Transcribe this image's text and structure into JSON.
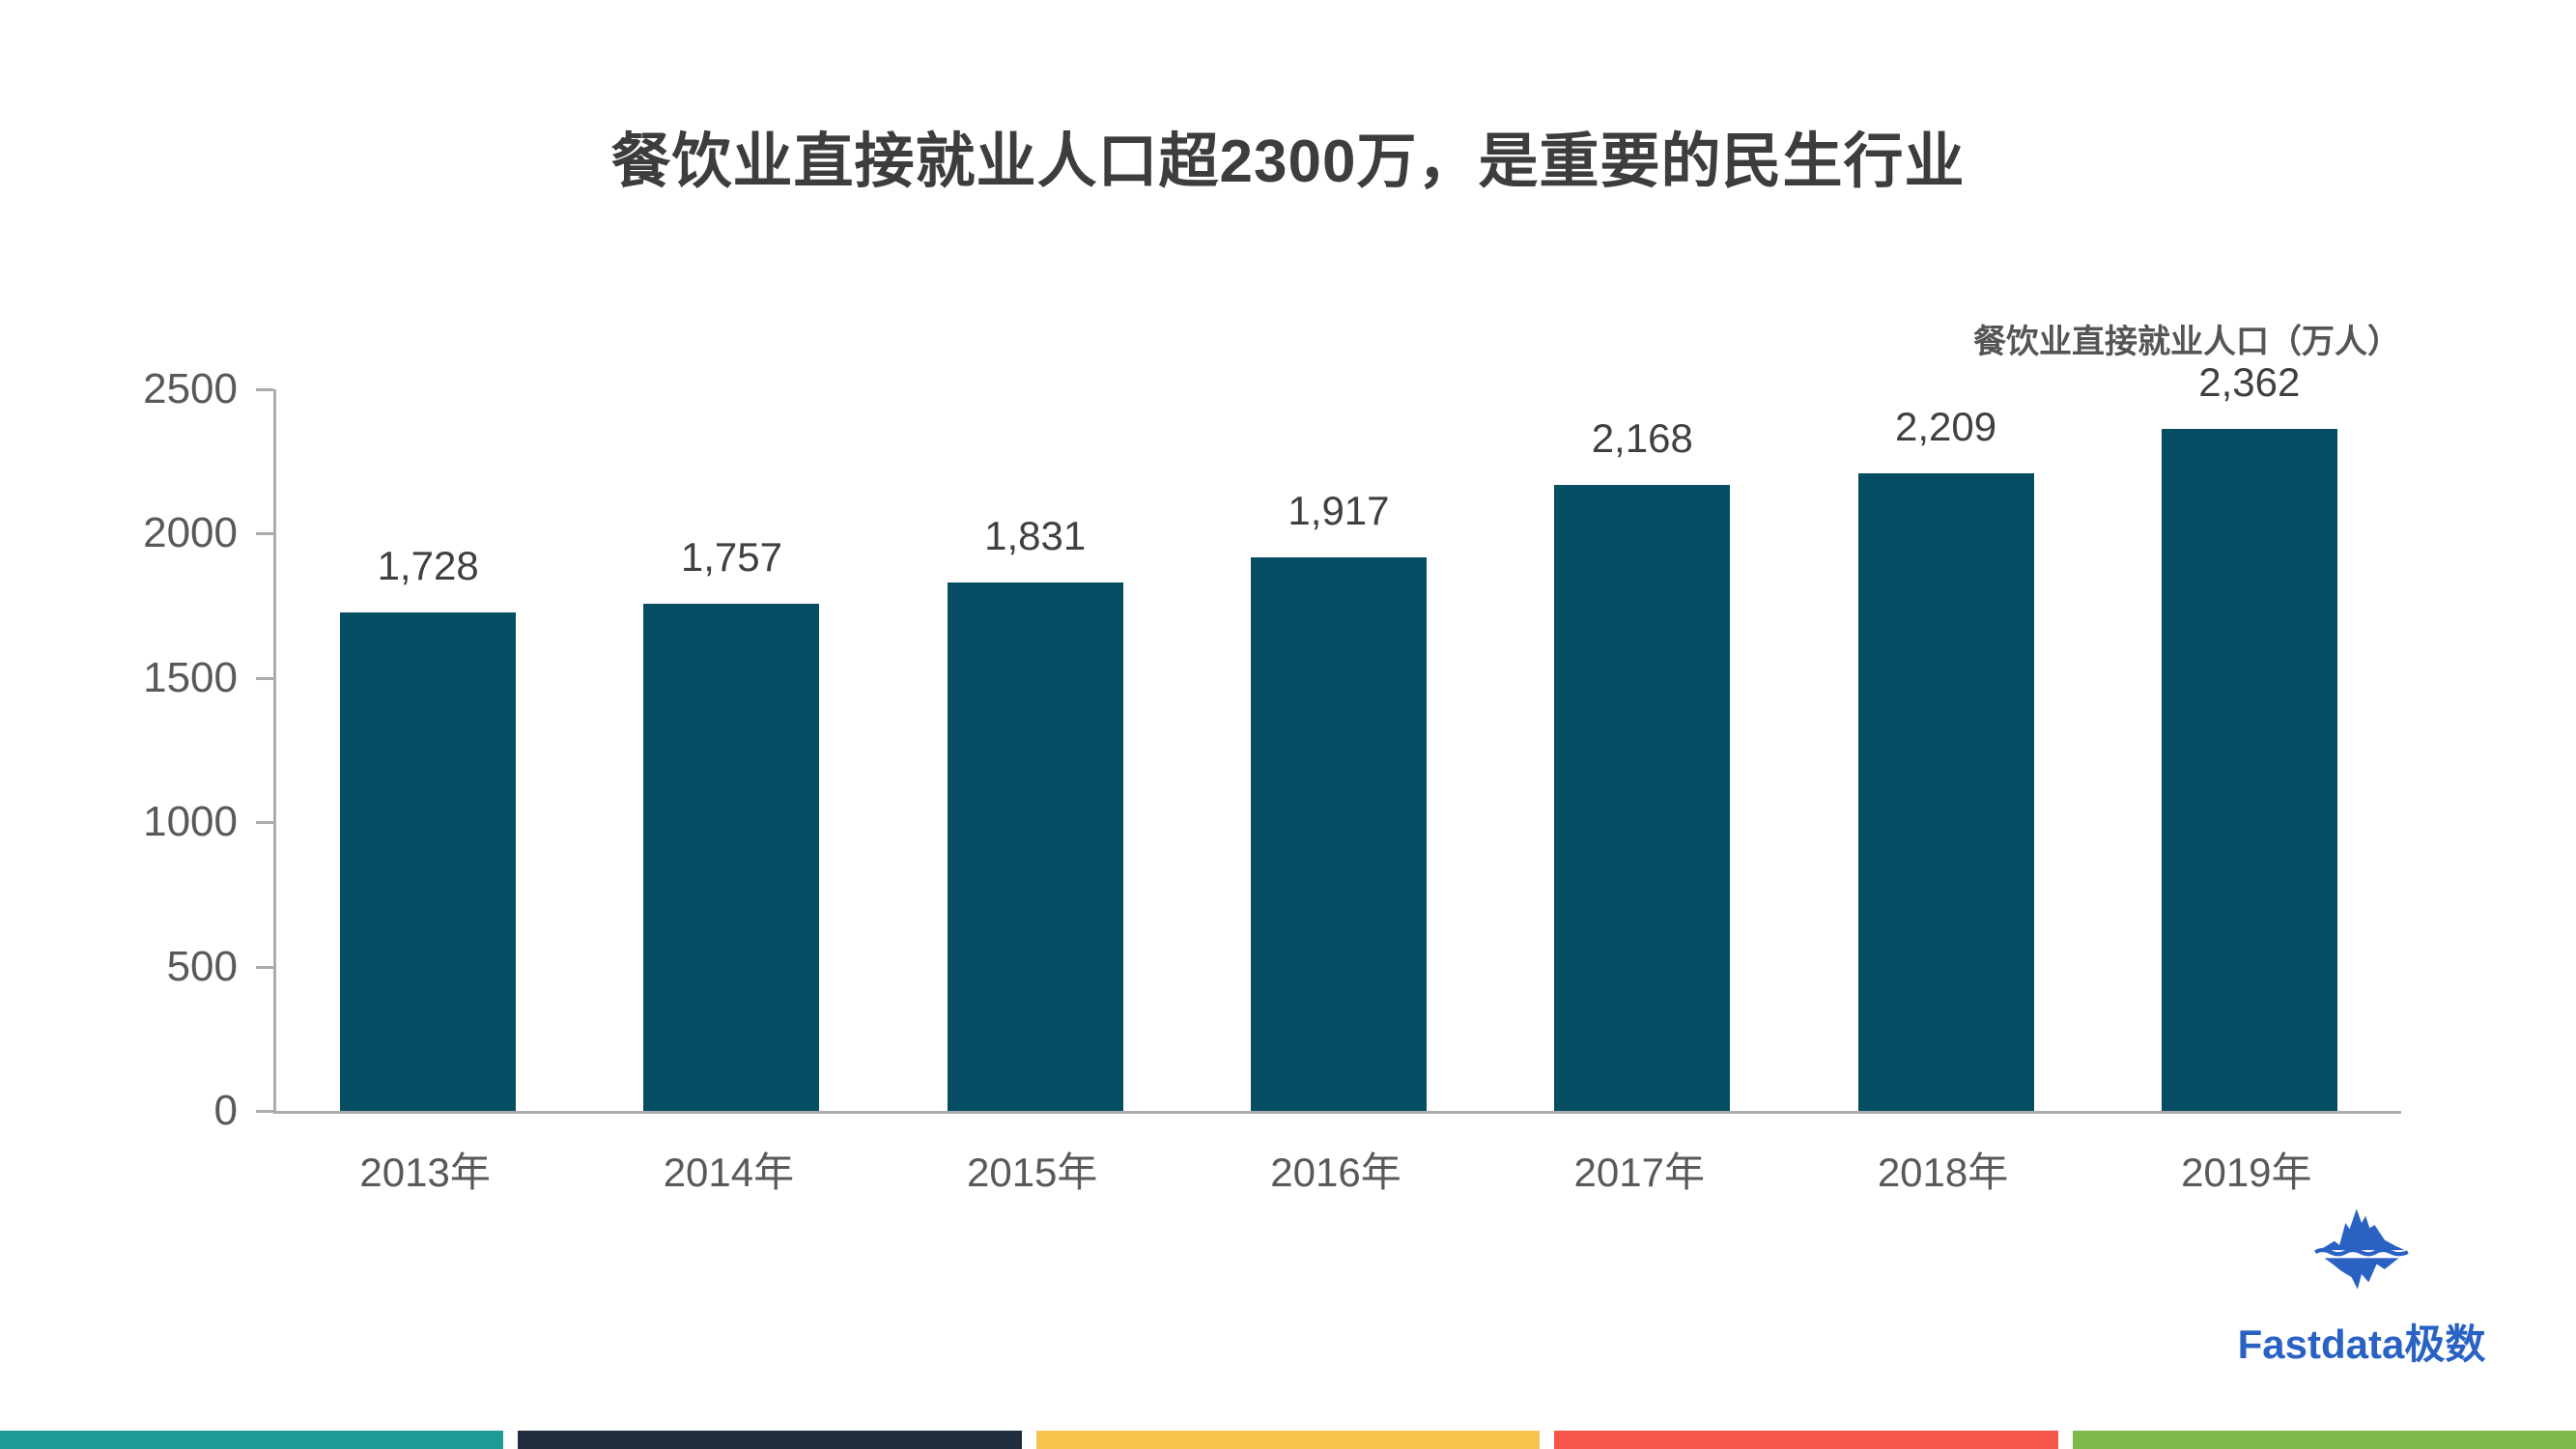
{
  "title": "餐饮业直接就业人口超2300万，是重要的民生行业",
  "legend": "餐饮业直接就业人口（万人）",
  "logo": {
    "text": "Fastdata极数",
    "icon": "iceberg-icon",
    "color": "#2a62c4"
  },
  "colors": {
    "bar": "#054d63",
    "axis_line": "#acacac",
    "title_text": "#3d3d3d",
    "value_label_text": "#404040",
    "tick_label_text": "#595959",
    "footer_segments": [
      "#1f9b97",
      "#1f2d3d",
      "#f7c34c",
      "#f6554a",
      "#7eb94b"
    ]
  },
  "chart_data": {
    "type": "bar",
    "title": "餐饮业直接就业人口超2300万，是重要的民生行业",
    "series_name": "餐饮业直接就业人口（万人）",
    "categories": [
      "2013年",
      "2014年",
      "2015年",
      "2016年",
      "2017年",
      "2018年",
      "2019年"
    ],
    "values": [
      1728,
      1757,
      1831,
      1917,
      2168,
      2209,
      2362
    ],
    "value_labels": [
      "1,728",
      "1,757",
      "1,831",
      "1,917",
      "2,168",
      "2,209",
      "2,362"
    ],
    "xlabel": "",
    "ylabel": "",
    "ylim": [
      0,
      2500
    ],
    "yticks": [
      0,
      500,
      1000,
      1500,
      2000,
      2500
    ],
    "grid": false,
    "legend_position": "top-right",
    "bar_color": "#054d63"
  }
}
